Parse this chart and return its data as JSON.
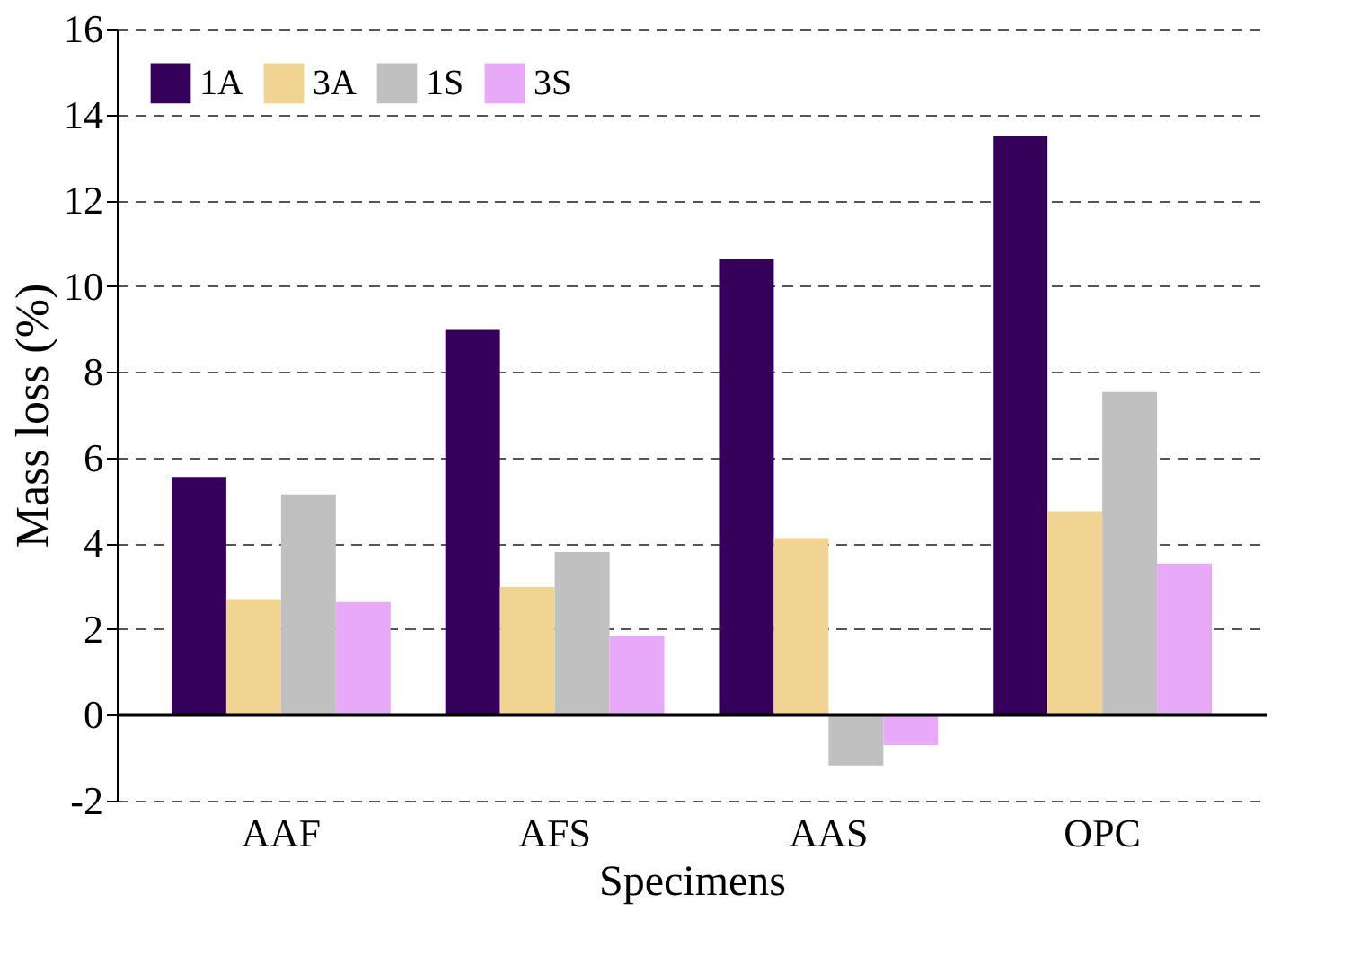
{
  "chart_data": {
    "type": "bar",
    "xlabel": "Specimens",
    "ylabel": "Mass loss (%)",
    "categories": [
      "AAF",
      "AFS",
      "AAS",
      "OPC"
    ],
    "series": [
      {
        "name": "1A",
        "color": "#35005a",
        "values": [
          5.55,
          8.98,
          10.63,
          13.5
        ]
      },
      {
        "name": "3A",
        "color": "#f2d492",
        "values": [
          2.7,
          2.98,
          4.12,
          4.75
        ]
      },
      {
        "name": "1S",
        "color": "#c0c0c0",
        "values": [
          5.14,
          3.8,
          -1.18,
          7.53
        ]
      },
      {
        "name": "3S",
        "color": "#e9a9f9",
        "values": [
          2.63,
          1.84,
          -0.7,
          3.53
        ]
      }
    ],
    "ylim": [
      -2,
      16
    ],
    "yticks": [
      -2,
      0,
      2,
      4,
      6,
      8,
      10,
      12,
      14,
      16
    ],
    "grid": "y",
    "legend": "top left",
    "ref_lines": [
      {
        "axis": "y",
        "value": 0,
        "color": "#000000",
        "line_style": "solid"
      }
    ]
  }
}
